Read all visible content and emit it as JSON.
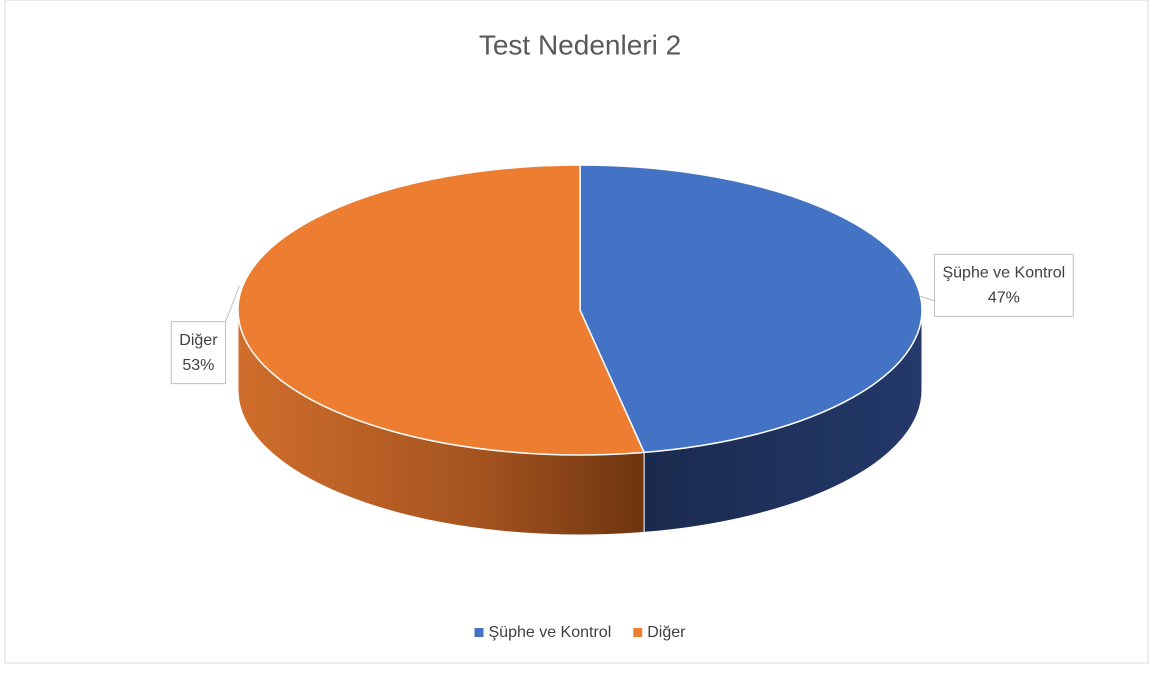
{
  "chart_data": {
    "type": "pie",
    "title": "Test Nedenleri 2",
    "categories": [
      "Şüphe ve Kontrol",
      "Diğer"
    ],
    "values": [
      47,
      53
    ],
    "value_labels": [
      "47%",
      "53%"
    ],
    "colors": [
      "#4472c4",
      "#ed7d31"
    ],
    "legend": "bottom"
  }
}
